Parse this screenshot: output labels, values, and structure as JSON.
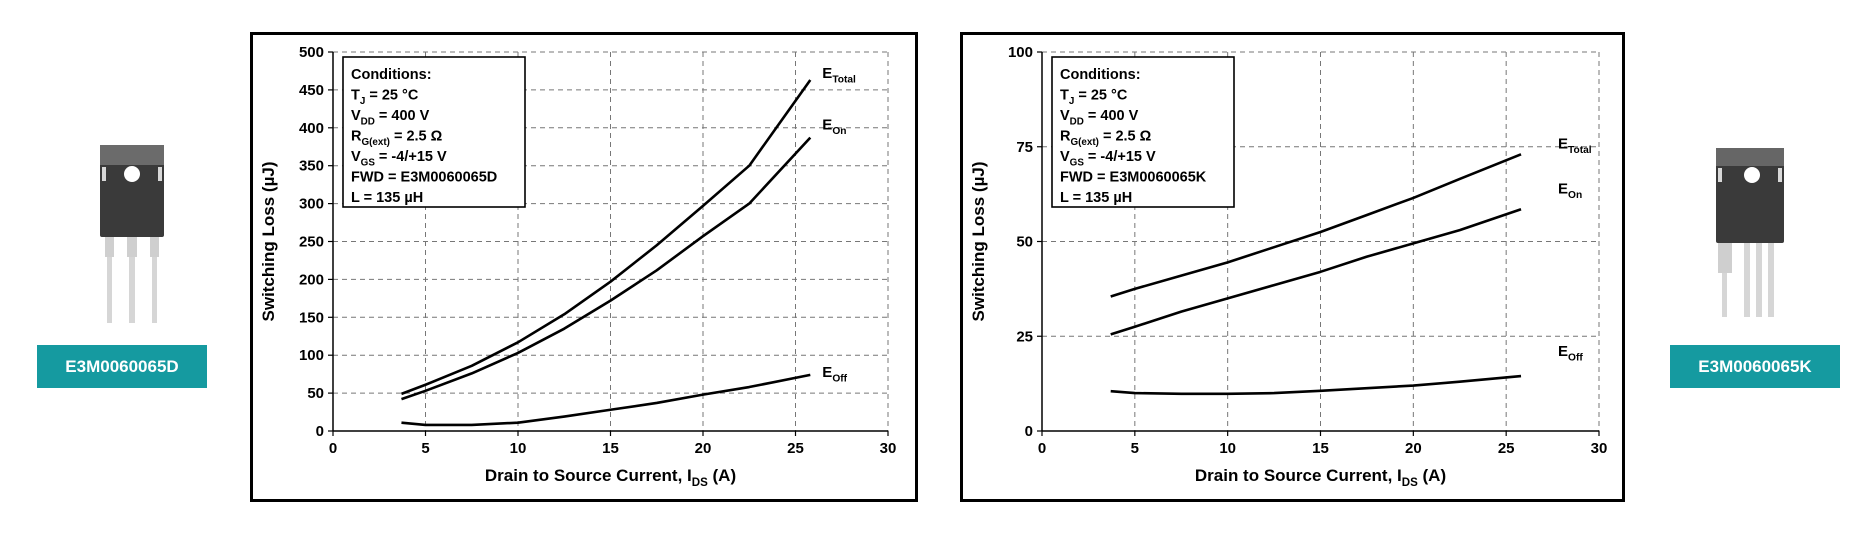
{
  "packages": {
    "left_badge": "E3M0060065D",
    "right_badge": "E3M0060065K"
  },
  "accent_color": "#159aa0",
  "chart_data": [
    {
      "type": "line",
      "xlabel": "Drain to Source Current, IDS (A)",
      "xlabel_main": "Drain to Source Current, I",
      "xlabel_sub": "DS",
      "xlabel_tail": " (A)",
      "ylabel": "Switching Loss (µJ)",
      "xlim": [
        0,
        30
      ],
      "ylim": [
        0,
        500
      ],
      "xticks": [
        0,
        5,
        10,
        15,
        20,
        25,
        30
      ],
      "yticks": [
        0,
        50,
        100,
        150,
        200,
        250,
        300,
        350,
        400,
        450,
        500
      ],
      "grid": true,
      "conditions": [
        {
          "main": "Conditions:",
          "sub": "",
          "tail": ""
        },
        {
          "main": "T",
          "sub": "J",
          "tail": " = 25 °C"
        },
        {
          "main": "V",
          "sub": "DD",
          "tail": " = 400 V"
        },
        {
          "main": "R",
          "sub": "G(ext)",
          "tail": " = 2.5 Ω"
        },
        {
          "main": "V",
          "sub": "GS",
          "tail": " = -4/+15 V"
        },
        {
          "main": "FWD = E3M0060065D",
          "sub": "",
          "tail": ""
        },
        {
          "main": "L = 135 µH",
          "sub": "",
          "tail": ""
        }
      ],
      "series": [
        {
          "label_main": "E",
          "label_sub": "Total",
          "x": [
            3.7,
            5,
            7.5,
            10,
            12.5,
            15,
            17.5,
            20,
            22.5,
            25.8
          ],
          "y": [
            49,
            61,
            86,
            117,
            154,
            197,
            245,
            297,
            350,
            463
          ]
        },
        {
          "label_main": "E",
          "label_sub": "On",
          "x": [
            3.7,
            5,
            7.5,
            10,
            12.5,
            15,
            17.5,
            20,
            22.5,
            25.8
          ],
          "y": [
            42,
            53,
            76,
            103,
            135,
            172,
            212,
            257,
            300,
            387
          ]
        },
        {
          "label_main": "E",
          "label_sub": "Off",
          "x": [
            3.7,
            5,
            7.5,
            10,
            12.5,
            15,
            17.5,
            20,
            22.5,
            25.8
          ],
          "y": [
            11,
            8,
            8,
            11,
            19,
            28,
            37,
            48,
            58,
            74
          ]
        }
      ]
    },
    {
      "type": "line",
      "xlabel": "Drain to Source Current, IDS (A)",
      "xlabel_main": "Drain to Source Current, I",
      "xlabel_sub": "DS",
      "xlabel_tail": " (A)",
      "ylabel": "Switching Loss (µJ)",
      "xlim": [
        0,
        30
      ],
      "ylim": [
        0,
        100
      ],
      "xticks": [
        0,
        5,
        10,
        15,
        20,
        25,
        30
      ],
      "yticks": [
        0,
        25,
        50,
        75,
        100
      ],
      "grid": true,
      "conditions": [
        {
          "main": "Conditions:",
          "sub": "",
          "tail": ""
        },
        {
          "main": "T",
          "sub": "J",
          "tail": " = 25 °C"
        },
        {
          "main": "V",
          "sub": "DD",
          "tail": " = 400 V"
        },
        {
          "main": "R",
          "sub": "G(ext)",
          "tail": " = 2.5 Ω"
        },
        {
          "main": "V",
          "sub": "GS",
          "tail": " = -4/+15 V"
        },
        {
          "main": "FWD = E3M0060065K",
          "sub": "",
          "tail": ""
        },
        {
          "main": "L = 135 µH",
          "sub": "",
          "tail": ""
        }
      ],
      "series": [
        {
          "label_main": "E",
          "label_sub": "Total",
          "x": [
            3.7,
            5,
            7.5,
            10,
            12.5,
            15,
            17.5,
            20,
            22.5,
            25.8
          ],
          "y": [
            35.5,
            37.5,
            41,
            44.5,
            48.5,
            52.5,
            57,
            61.5,
            66.5,
            73
          ]
        },
        {
          "label_main": "E",
          "label_sub": "On",
          "x": [
            3.7,
            5,
            7.5,
            10,
            12.5,
            15,
            17.5,
            20,
            22.5,
            25.8
          ],
          "y": [
            25.5,
            27.5,
            31.5,
            35,
            38.5,
            42,
            46,
            49.5,
            53,
            58.5
          ]
        },
        {
          "label_main": "E",
          "label_sub": "Off",
          "x": [
            3.7,
            5,
            7.5,
            10,
            12.5,
            15,
            17.5,
            20,
            22.5,
            25.8
          ],
          "y": [
            10.5,
            10,
            9.8,
            9.8,
            10,
            10.6,
            11.3,
            12,
            13,
            14.5
          ]
        }
      ]
    }
  ]
}
